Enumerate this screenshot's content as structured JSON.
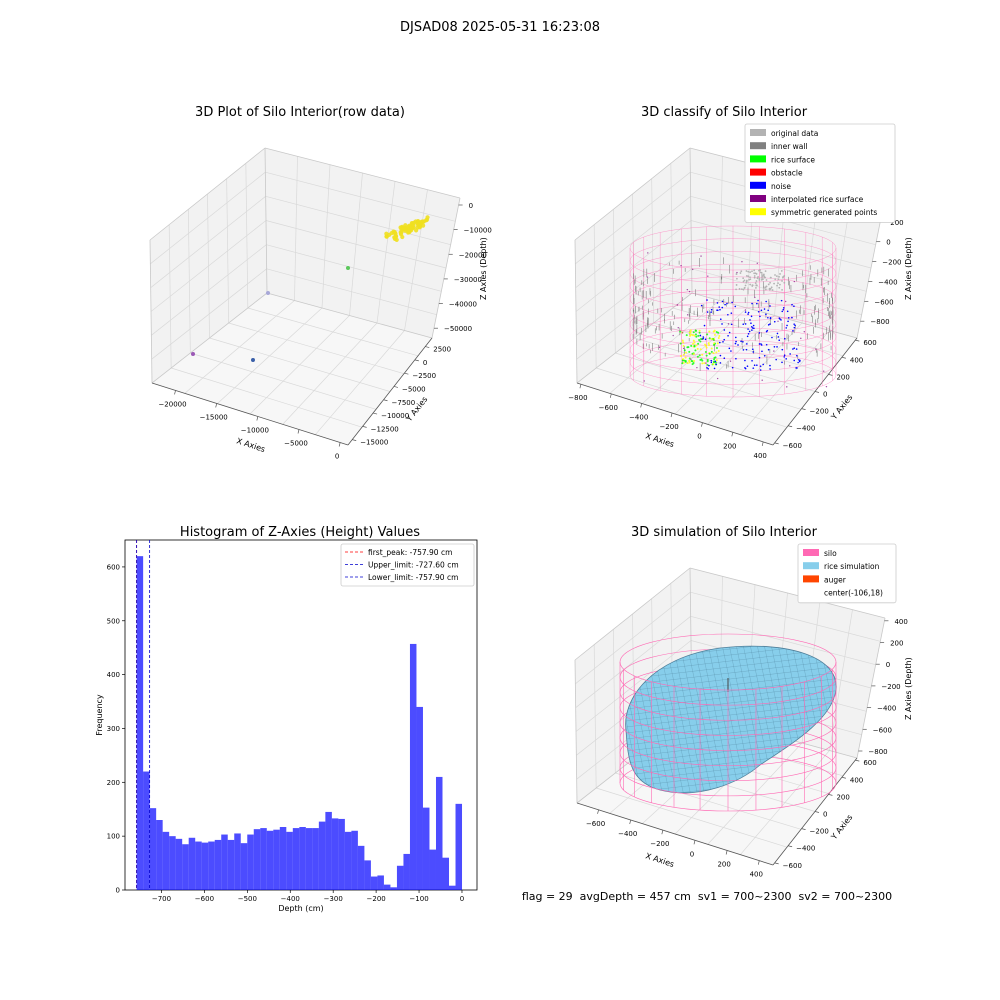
{
  "suptitle": "DJSAD08 2025-05-31 16:23:08",
  "footer": {
    "text": "flag = 29  avgDepth = 457 cm  sv1 = 700~2300  sv2 = 700~2300"
  },
  "colors": {
    "pane": "#f2f2f2",
    "grid": "#d9d9d9",
    "hist_bar": "#0000ff",
    "first_peak": "#ff0000",
    "limit_lines": "#0000cc"
  },
  "chart_data": [
    {
      "type": "scatter",
      "title": "3D Plot of Silo Interior(row data)",
      "xlabel": "X Axies",
      "ylabel": "Y Axies",
      "zlabel": "Z Axies (Depth)",
      "x_ticks": [
        "−20000",
        "−15000",
        "−10000",
        "−5000",
        "0"
      ],
      "y_ticks": [
        "2500",
        "0",
        "−2500",
        "−5000",
        "−7500",
        "−10000",
        "−12500",
        "−15000"
      ],
      "z_ticks": [
        "0",
        "−10000",
        "−20000",
        "−30000",
        "−40000",
        "−50000"
      ],
      "points": [
        {
          "x": -20500,
          "y": -3000,
          "z": -52000,
          "color": "#9b59b6"
        },
        {
          "x": -12500,
          "y": -7500,
          "z": -52000,
          "color": "#3a5fa8"
        },
        {
          "x": -17000,
          "y": 2500,
          "z": -30000,
          "color": "#a8a8d8"
        },
        {
          "x": -3000,
          "y": 2500,
          "z": -20000,
          "color": "#5cc85c"
        },
        {
          "cluster": "yellow",
          "color": "#f0e020"
        }
      ]
    },
    {
      "type": "scatter",
      "title": "3D classify of Silo Interior",
      "xlabel": "X Axies",
      "ylabel": "Y Axies",
      "zlabel": "Z Axies (Depth)",
      "x_ticks": [
        "−800",
        "−600",
        "−400",
        "−200",
        "0",
        "200",
        "400"
      ],
      "y_ticks": [
        "600",
        "400",
        "200",
        "0",
        "−200",
        "−400",
        "−600"
      ],
      "z_ticks": [
        "200",
        "0",
        "−200",
        "−400",
        "−600",
        "−800"
      ],
      "legend_position": "top-right",
      "legend": [
        {
          "label": "original data",
          "color": "#b3b3b3"
        },
        {
          "label": "inner wall",
          "color": "#808080"
        },
        {
          "label": "rice surface",
          "color": "#00ff00"
        },
        {
          "label": "obstacle",
          "color": "#ff0000"
        },
        {
          "label": "noise",
          "color": "#0000ff"
        },
        {
          "label": "interpolated rice surface",
          "color": "#800080"
        },
        {
          "label": "symmetric generated points",
          "color": "#ffff00"
        }
      ]
    },
    {
      "type": "bar",
      "title": "Histogram of Z-Axies (Height) Values",
      "xlabel": "Depth (cm)",
      "ylabel": "Frequency",
      "xlim": [
        -785,
        35
      ],
      "ylim": [
        0,
        650
      ],
      "x_ticks": [
        -700,
        -600,
        -500,
        -400,
        -300,
        -200,
        -100,
        0
      ],
      "y_ticks": [
        0,
        100,
        200,
        300,
        400,
        500,
        600
      ],
      "x_tick_labels": [
        "−700",
        "−600",
        "−500",
        "−400",
        "−300",
        "−200",
        "−100",
        "0"
      ],
      "bin_start": -757.9,
      "bin_width": 15.16,
      "values": [
        620,
        220,
        152,
        130,
        108,
        100,
        95,
        85,
        97,
        90,
        88,
        90,
        93,
        103,
        93,
        105,
        87,
        103,
        113,
        115,
        110,
        112,
        117,
        108,
        115,
        117,
        115,
        115,
        127,
        145,
        133,
        132,
        108,
        110,
        82,
        55,
        25,
        27,
        10,
        5,
        45,
        67,
        457,
        340,
        153,
        75,
        210,
        60,
        8,
        160
      ],
      "legend_position": "top-right",
      "lines": [
        {
          "label": "first_peak: -757.90 cm",
          "x": -757.9,
          "color": "#ff0000"
        },
        {
          "label": "Upper_limit: -727.60 cm",
          "x": -727.6,
          "color": "#0000cc"
        },
        {
          "label": "Lower_limit: -757.90 cm",
          "x": -757.9,
          "color": "#0000cc"
        }
      ]
    },
    {
      "type": "area",
      "title": "3D simulation of Silo Interior",
      "xlabel": "X Axies",
      "ylabel": "Y Axies",
      "zlabel": "Z Axies (Depth)",
      "x_ticks": [
        "−600",
        "−400",
        "−200",
        "0",
        "200",
        "400"
      ],
      "y_ticks": [
        "600",
        "400",
        "200",
        "0",
        "−200",
        "−400",
        "−600"
      ],
      "z_ticks": [
        "400",
        "200",
        "0",
        "−200",
        "−400",
        "−600",
        "−800"
      ],
      "legend_position": "top-right",
      "legend": [
        {
          "label": "silo",
          "color": "#ff69b4"
        },
        {
          "label": "rice simulation",
          "color": "#87ceeb"
        },
        {
          "label": "auger",
          "color": "#ff4500"
        },
        {
          "label": "center(-106,18)",
          "color": ""
        }
      ]
    }
  ]
}
